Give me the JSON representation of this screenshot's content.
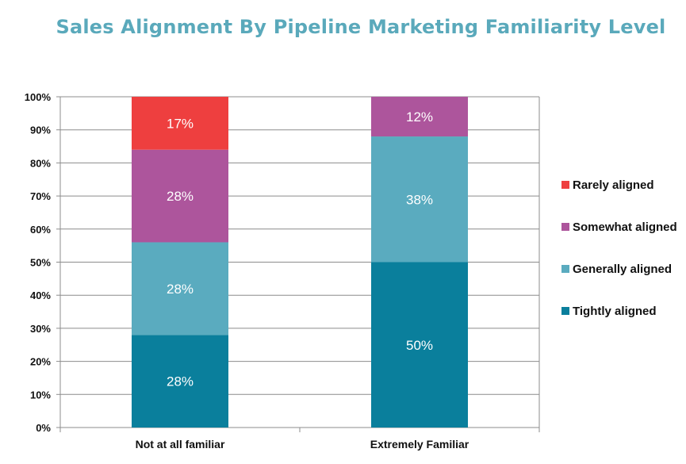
{
  "chart_data": {
    "type": "bar",
    "stacked": true,
    "title": "Sales Alignment By Pipeline Marketing Familiarity Level",
    "categories": [
      "Not at all familiar",
      "Extremely Familiar"
    ],
    "series": [
      {
        "name": "Tightly aligned",
        "color": "#0a7f9c",
        "values": [
          28,
          50
        ],
        "labels": [
          "28%",
          "50%"
        ]
      },
      {
        "name": "Generally aligned",
        "color": "#5aabbf",
        "values": [
          28,
          38
        ],
        "labels": [
          "28%",
          "38%"
        ]
      },
      {
        "name": "Somewhat aligned",
        "color": "#ad559c",
        "values": [
          28,
          12
        ],
        "labels": [
          "28%",
          "12%"
        ]
      },
      {
        "name": "Rarely aligned",
        "color": "#ee3f3f",
        "values": [
          17,
          0
        ],
        "labels": [
          "17%",
          ""
        ]
      }
    ],
    "legend_order": [
      "Rarely aligned",
      "Somewhat aligned",
      "Generally aligned",
      "Tightly aligned"
    ],
    "y_ticks": [
      "0%",
      "10%",
      "20%",
      "30%",
      "40%",
      "50%",
      "60%",
      "70%",
      "80%",
      "90%",
      "100%"
    ],
    "ylim": [
      0,
      100
    ],
    "legend_position": "right",
    "grid": true
  }
}
